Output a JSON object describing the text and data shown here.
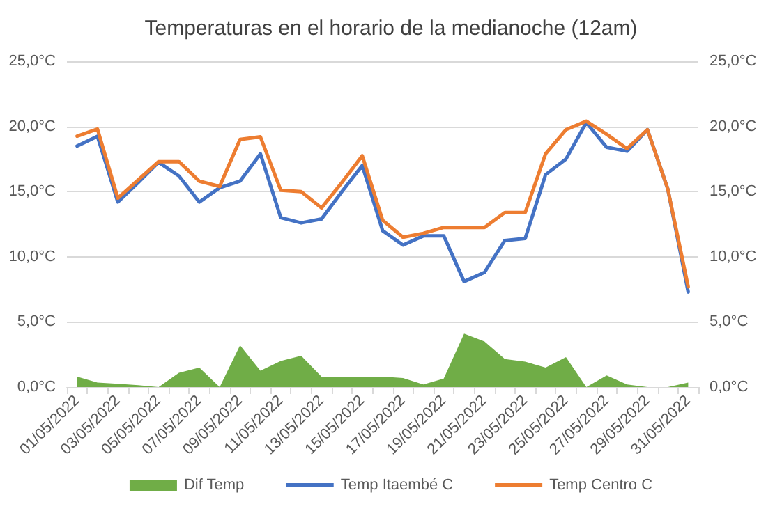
{
  "chart_data": {
    "type": "line",
    "title": "Temperaturas en el horario de la medianoche (12am)",
    "categories": [
      "01/05/2022",
      null,
      "03/05/2022",
      null,
      "05/05/2022",
      null,
      "07/05/2022",
      null,
      "09/05/2022",
      null,
      "11/05/2022",
      null,
      "13/05/2022",
      null,
      "15/05/2022",
      null,
      "17/05/2022",
      null,
      "19/05/2022",
      null,
      "21/05/2022",
      null,
      "23/05/2022",
      null,
      "25/05/2022",
      null,
      "27/05/2022",
      null,
      "29/05/2022",
      null,
      "31/05/2022"
    ],
    "series": [
      {
        "name": "Dif Temp",
        "type": "area",
        "color": "#70ad47",
        "values": [
          0.8,
          0.35,
          0.25,
          0.15,
          0,
          1.1,
          1.5,
          0,
          3.2,
          1.25,
          2.0,
          2.4,
          0.8,
          0.8,
          0.75,
          0.8,
          0.7,
          0.2,
          0.65,
          4.1,
          3.5,
          2.15,
          1.95,
          1.5,
          2.3,
          0,
          0.9,
          0.2,
          0,
          0,
          0.35
        ]
      },
      {
        "name": "Temp Itaembé C",
        "color": "#4472c4",
        "values": [
          18.5,
          19.25,
          14.2,
          15.7,
          17.25,
          16.2,
          14.2,
          15.3,
          15.8,
          17.9,
          13.0,
          12.6,
          12.9,
          15.0,
          17.0,
          12.0,
          10.9,
          11.6,
          11.6,
          8.1,
          8.8,
          11.25,
          11.4,
          16.3,
          17.5,
          20.3,
          18.4,
          18.1,
          19.75,
          15.2,
          7.3
        ]
      },
      {
        "name": "Temp Centro C",
        "color": "#ed7d31",
        "values": [
          19.25,
          19.8,
          14.5,
          15.9,
          17.3,
          17.3,
          15.8,
          15.4,
          19.0,
          19.2,
          15.1,
          15.0,
          13.75,
          15.7,
          17.75,
          12.8,
          11.5,
          11.8,
          12.25,
          12.25,
          12.25,
          13.4,
          13.4,
          17.9,
          19.75,
          20.4,
          19.4,
          18.3,
          19.75,
          15.2,
          7.7
        ]
      }
    ],
    "ylim": [
      0,
      25
    ],
    "yticks": [
      {
        "value": 0,
        "label": "0,0°C"
      },
      {
        "value": 5,
        "label": "5,0°C"
      },
      {
        "value": 10,
        "label": "10,0°C"
      },
      {
        "value": 15,
        "label": "15,0°C"
      },
      {
        "value": 20,
        "label": "20,0°C"
      },
      {
        "value": 25,
        "label": "25,0°C"
      }
    ],
    "y2lim": [
      0,
      25
    ],
    "y2ticks": [
      {
        "value": 0,
        "label": "0,0°C"
      },
      {
        "value": 5,
        "label": "5,0°C"
      },
      {
        "value": 10,
        "label": "10,0°C"
      },
      {
        "value": 15,
        "label": "15,0°C"
      },
      {
        "value": 20,
        "label": "20,0°C"
      },
      {
        "value": 25,
        "label": "25,0°C"
      }
    ],
    "grid": "y",
    "legend": "bottom",
    "marker": "none",
    "line_style": "solid"
  }
}
